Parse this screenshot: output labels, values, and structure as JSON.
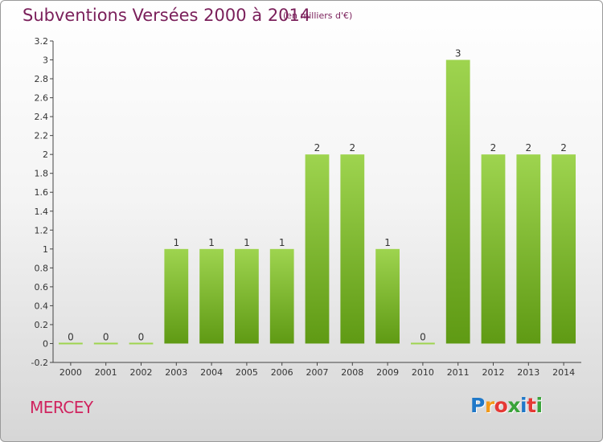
{
  "title": "Subventions Versées 2000 à 2014",
  "unit_note": "(en milliers d'€)",
  "commune": "MERCEY",
  "logo": {
    "text": "Proxiti",
    "letters": [
      {
        "ch": "P",
        "color": "#1f78c8"
      },
      {
        "ch": "r",
        "color": "#f29a1a"
      },
      {
        "ch": "o",
        "color": "#e53935"
      },
      {
        "ch": "x",
        "color": "#3aa33a"
      },
      {
        "ch": "i",
        "color": "#1f78c8"
      },
      {
        "ch": "t",
        "color": "#e53935"
      },
      {
        "ch": "i",
        "color": "#3aa33a"
      }
    ]
  },
  "colors": {
    "bar_light": "#9ed44f",
    "bar_dark": "#5f9a14",
    "title": "#7a1f5a",
    "commune": "#d0245f"
  },
  "chart_data": {
    "type": "bar",
    "categories": [
      "2000",
      "2001",
      "2002",
      "2003",
      "2004",
      "2005",
      "2006",
      "2007",
      "2008",
      "2009",
      "2010",
      "2011",
      "2012",
      "2013",
      "2014"
    ],
    "values": [
      0,
      0,
      0,
      1,
      1,
      1,
      1,
      2,
      2,
      1,
      0,
      3,
      2,
      2,
      2
    ],
    "data_labels": [
      "0",
      "0",
      "0",
      "1",
      "1",
      "1",
      "1",
      "2",
      "2",
      "1",
      "0",
      "3",
      "2",
      "2",
      "2"
    ],
    "yticks": [
      "-0.2",
      "0",
      "0.2",
      "0.4",
      "0.6",
      "0.8",
      "1",
      "1.2",
      "1.4",
      "1.6",
      "1.8",
      "2",
      "2.2",
      "2.4",
      "2.6",
      "2.8",
      "3",
      "3.2"
    ],
    "ylim": [
      -0.2,
      3.2
    ],
    "grid": false,
    "xlabel": "",
    "ylabel": ""
  }
}
